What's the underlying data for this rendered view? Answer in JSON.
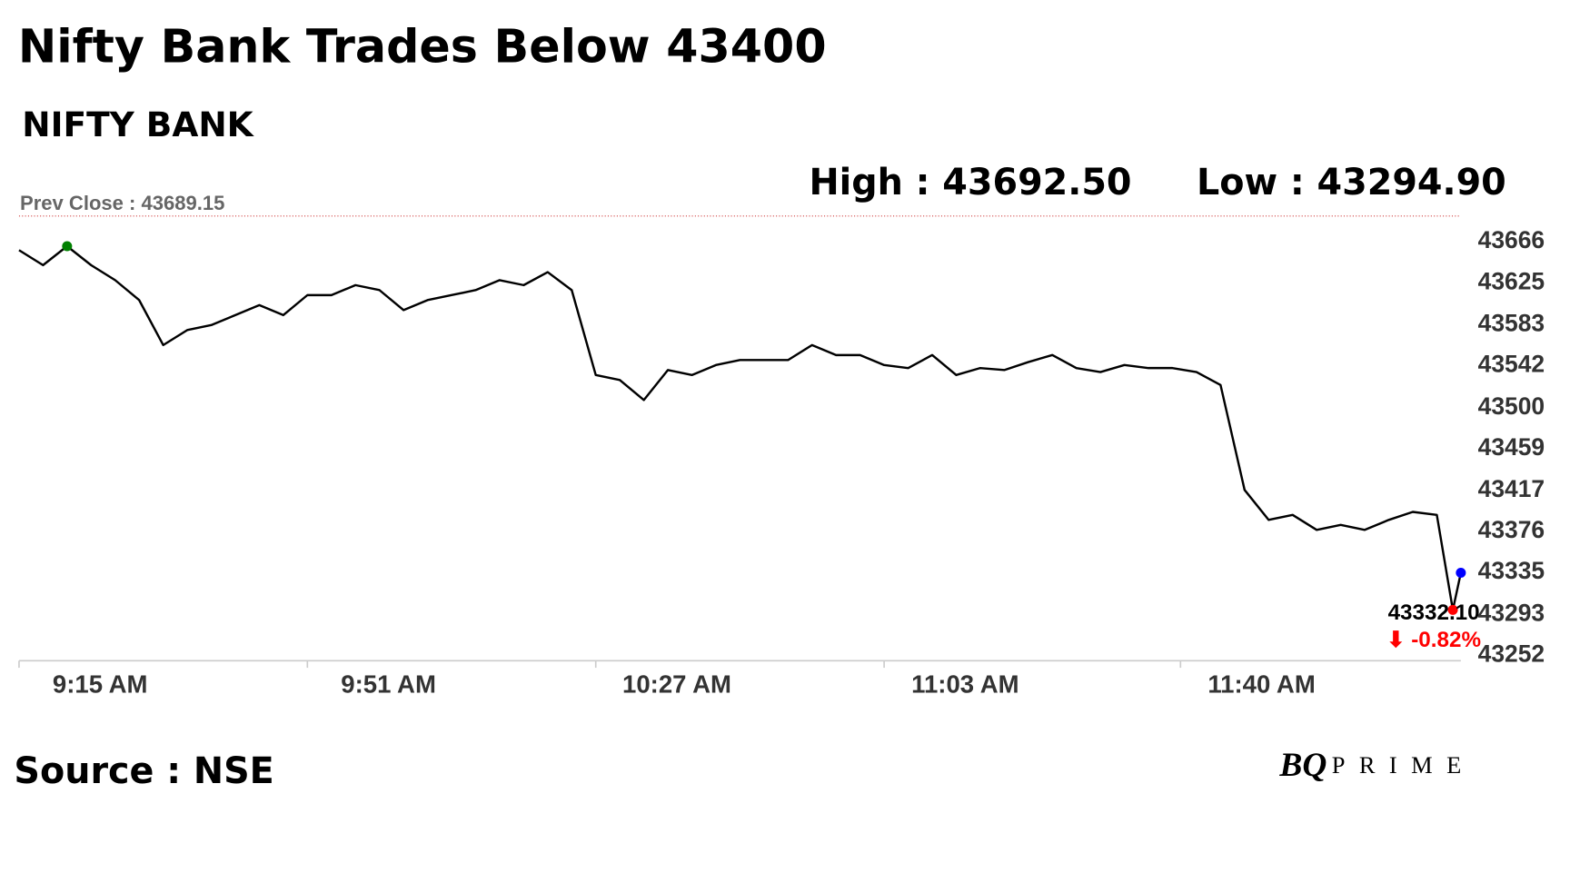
{
  "chart_data": {
    "type": "line",
    "title": "Nifty Bank Trades Below 43400",
    "subtitle": "NIFTY BANK",
    "high_label": "High : 43692.50",
    "low_label": "Low : 43294.90",
    "prev_close_label": "Prev Close : 43689.15",
    "prev_close": 43689.15,
    "last_label": "43332.10",
    "change_label": "⬇ -0.82%",
    "source": "Source : NSE",
    "brand": {
      "bq": "BQ",
      "prime": "PRIME"
    },
    "x": [
      "9:15 AM",
      "9:18 AM",
      "9:21 AM",
      "9:24 AM",
      "9:27 AM",
      "9:30 AM",
      "9:33 AM",
      "9:36 AM",
      "9:39 AM",
      "9:42 AM",
      "9:45 AM",
      "9:48 AM",
      "9:51 AM",
      "9:54 AM",
      "9:57 AM",
      "10:00 AM",
      "10:03 AM",
      "10:06 AM",
      "10:09 AM",
      "10:12 AM",
      "10:15 AM",
      "10:18 AM",
      "10:21 AM",
      "10:24 AM",
      "10:27 AM",
      "10:30 AM",
      "10:33 AM",
      "10:36 AM",
      "10:39 AM",
      "10:42 AM",
      "10:45 AM",
      "10:48 AM",
      "10:51 AM",
      "10:54 AM",
      "10:57 AM",
      "11:00 AM",
      "11:03 AM",
      "11:06 AM",
      "11:09 AM",
      "11:12 AM",
      "11:15 AM",
      "11:18 AM",
      "11:21 AM",
      "11:24 AM",
      "11:27 AM",
      "11:30 AM",
      "11:33 AM",
      "11:36 AM",
      "11:39 AM",
      "11:42 AM",
      "11:45 AM",
      "11:48 AM",
      "11:51 AM",
      "11:54 AM",
      "11:57 AM",
      "12:00 PM",
      "12:03 PM",
      "12:06 PM",
      "12:09 PM",
      "12:12 PM",
      "12:14 PM",
      "12:15 PM"
    ],
    "series": [
      {
        "name": "NIFTY BANK",
        "color": "#000000",
        "values": [
          43655,
          43640,
          43659,
          43640,
          43625,
          43605,
          43560,
          43575,
          43580,
          43590,
          43600,
          43590,
          43610,
          43610,
          43620,
          43615,
          43595,
          43605,
          43610,
          43615,
          43625,
          43620,
          43633,
          43615,
          43530,
          43525,
          43505,
          43535,
          43530,
          43540,
          43545,
          43545,
          43545,
          43560,
          43550,
          43550,
          43540,
          43537,
          43550,
          43530,
          43537,
          43535,
          43543,
          43550,
          43537,
          43533,
          43540,
          43537,
          43537,
          43533,
          43520,
          43415,
          43385,
          43390,
          43375,
          43380,
          43375,
          43385,
          43393,
          43390,
          43294.9,
          43332.1
        ]
      }
    ],
    "xlim": [
      "9:15 AM",
      "12:15 PM"
    ],
    "xticks": [
      "9:15 AM",
      "9:51 AM",
      "10:27 AM",
      "11:03 AM",
      "11:40 AM"
    ],
    "ylim": [
      43244,
      43707
    ],
    "yticks": [
      43252,
      43293,
      43335,
      43376,
      43417,
      43459,
      43500,
      43542,
      43583,
      43625,
      43666
    ],
    "high_color": "#008000",
    "low_color": "#ff0000",
    "last_color": "#0000ff",
    "change_color": "#ff0000"
  }
}
